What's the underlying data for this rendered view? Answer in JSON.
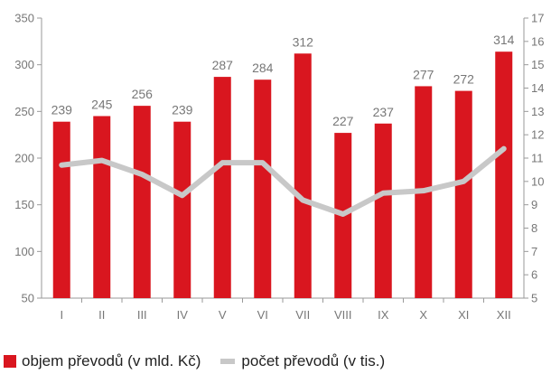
{
  "chart_data": {
    "type": "bar+line",
    "categories": [
      "I",
      "II",
      "III",
      "IV",
      "V",
      "VI",
      "VII",
      "VIII",
      "IX",
      "X",
      "XI",
      "XII"
    ],
    "series": [
      {
        "name": "objem převodů (v mld. Kč)",
        "type": "bar",
        "axis": "left",
        "color": "#d9161f",
        "values": [
          239,
          245,
          256,
          239,
          287,
          284,
          312,
          227,
          237,
          277,
          272,
          314
        ],
        "data_labels": [
          "239",
          "245",
          "256",
          "239",
          "287",
          "284",
          "312",
          "227",
          "237",
          "277",
          "272",
          "314"
        ]
      },
      {
        "name": "počet převodů (v tis.)",
        "type": "line",
        "axis": "right",
        "color": "#c8c8c8",
        "values": [
          10.7,
          10.9,
          10.3,
          9.4,
          10.8,
          10.8,
          9.2,
          8.6,
          9.5,
          9.6,
          10.0,
          11.4
        ]
      }
    ],
    "y_left": {
      "min": 50,
      "max": 350,
      "ticks": [
        "50",
        "100",
        "150",
        "200",
        "250",
        "300",
        "350"
      ]
    },
    "y_right": {
      "min": 5,
      "max": 17,
      "ticks": [
        "5",
        "6",
        "7",
        "8",
        "9",
        "10",
        "11",
        "12",
        "13",
        "14",
        "15",
        "16",
        "17"
      ]
    },
    "legend_position": "bottom-left",
    "grid": false
  }
}
